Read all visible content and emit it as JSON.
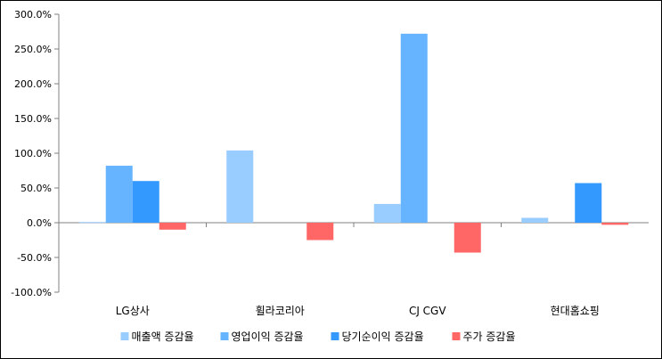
{
  "chart_data": {
    "type": "bar",
    "categories": [
      "LG상사",
      "휠라코리아",
      "CJ CGV",
      "현대홈쇼핑"
    ],
    "series": [
      {
        "name": "매출액 증감율",
        "color": "#99CCFF",
        "values": [
          1.0,
          104.0,
          27.0,
          7.0
        ]
      },
      {
        "name": "영업이익 증감율",
        "color": "#66B3FF",
        "values": [
          82.0,
          0.0,
          272.0,
          0.0
        ]
      },
      {
        "name": "당기순이익 증감율",
        "color": "#3399FF",
        "values": [
          60.0,
          0.0,
          0.0,
          57.0
        ]
      },
      {
        "name": "주가 증감율",
        "color": "#FF6666",
        "values": [
          -10.0,
          -25.0,
          -43.0,
          -3.0
        ]
      }
    ],
    "ylim": [
      -100,
      300
    ],
    "yticks": [
      300,
      250,
      200,
      150,
      100,
      50,
      0,
      -50,
      -100
    ],
    "ytick_labels": [
      "300.0%",
      "250.0%",
      "200.0%",
      "150.0%",
      "100.0%",
      "50.0%",
      "0.0%",
      "-50.0%",
      "-100.0%"
    ],
    "grid": false,
    "legend_position": "bottom",
    "title": "",
    "xlabel": "",
    "ylabel": ""
  }
}
